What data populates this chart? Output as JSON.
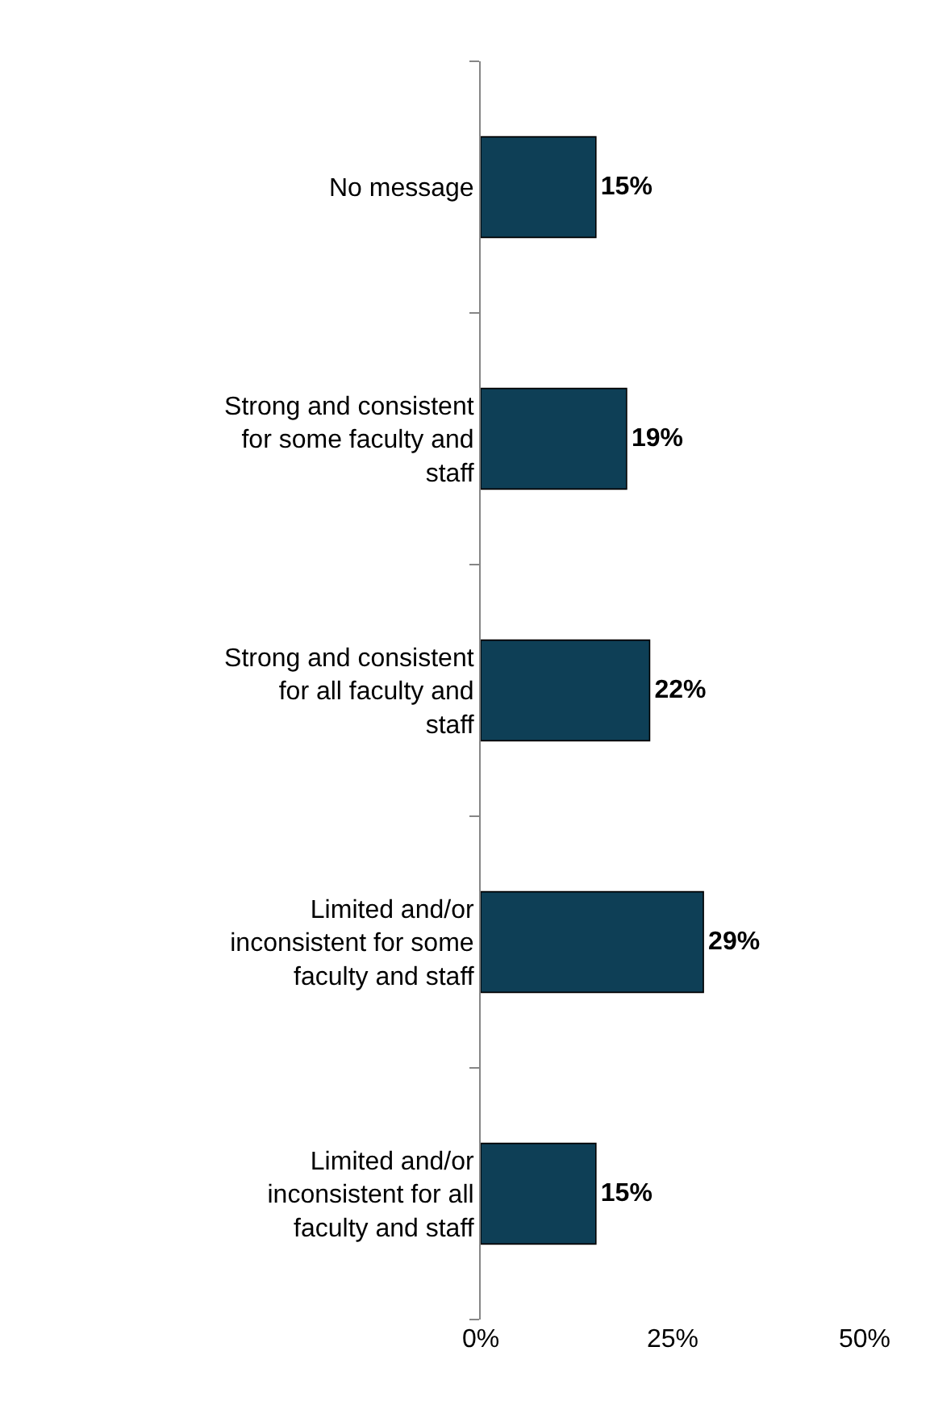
{
  "chart_data": {
    "type": "bar",
    "orientation": "horizontal",
    "categories": [
      "No message",
      "Strong and consistent for some faculty and staff",
      "Strong and consistent for all faculty and staff",
      "Limited and/or inconsistent for some faculty and staff",
      "Limited and/or inconsistent for all faculty and staff"
    ],
    "values": [
      15,
      19,
      22,
      29,
      15
    ],
    "value_labels": [
      "15%",
      "19%",
      "22%",
      "29%",
      "15%"
    ],
    "color": "#0e3f56",
    "xlim": [
      0,
      50
    ],
    "xticks": [
      {
        "value": 0,
        "label": "0%"
      },
      {
        "value": 25,
        "label": "25%"
      },
      {
        "value": 50,
        "label": "50%"
      }
    ]
  }
}
